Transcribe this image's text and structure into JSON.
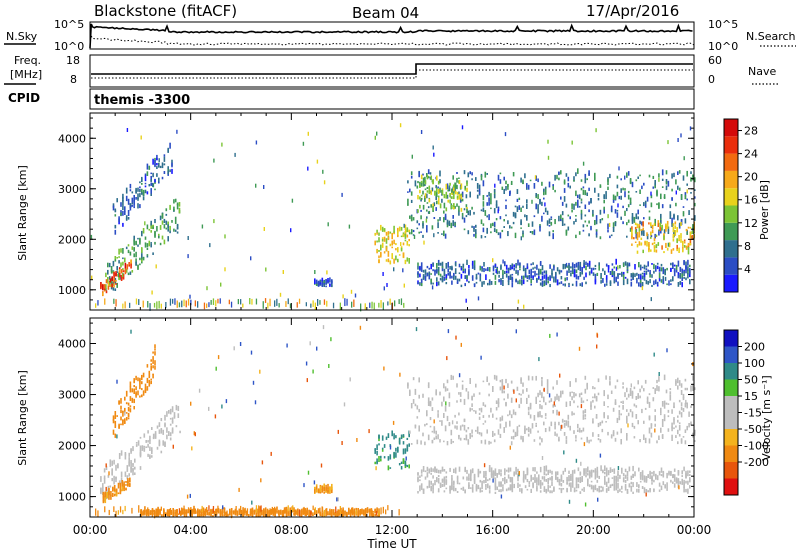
{
  "header": {
    "station": "Blackstone (fitACF)",
    "beam": "Beam 04",
    "date": "17/Apr/2016"
  },
  "noise_panel": {
    "left_label": "N.Sky",
    "right_label": "N.Search",
    "left_ticks": [
      "10^5",
      "10^0"
    ],
    "right_ticks": [
      "10^5",
      "10^0"
    ]
  },
  "freq_panel": {
    "left_label_line1": "Freq.",
    "left_label_line2": "[MHz]",
    "left_ticks": [
      "18",
      "8"
    ],
    "right_label": "Nave",
    "right_ticks": [
      "60",
      "0"
    ],
    "cpid_label": "CPID",
    "cpid_text": "themis -3300"
  },
  "colors": {
    "power_scale": [
      "#1a1aff",
      "#2b4dc4",
      "#2f6f8e",
      "#3f9a55",
      "#7cc436",
      "#e8d21c",
      "#f6a91a",
      "#f26a10",
      "#ea2e0c",
      "#d40a0a"
    ],
    "velocity_scale": [
      "#1010c0",
      "#2f56c7",
      "#2f8a88",
      "#4fbf2f",
      "#bdbdbd",
      "#bdbdbd",
      "#f4b31e",
      "#f08a12",
      "#e8560c",
      "#e01010"
    ]
  },
  "chart_data": [
    {
      "type": "heatmap",
      "title": "",
      "xlabel": "",
      "ylabel": "Slant Range [km]",
      "xlim": [
        0,
        24
      ],
      "ylim": [
        600,
        4500
      ],
      "x_tick_labels": [
        "00:00",
        "04:00",
        "08:00",
        "12:00",
        "16:00",
        "20:00",
        "00:00"
      ],
      "y_tick_labels": [
        "1000",
        "2000",
        "3000",
        "4000"
      ],
      "colorbar": {
        "label": "Power [dB]",
        "ticks": [
          "4",
          "8",
          "12",
          "16",
          "20",
          "24",
          "28"
        ],
        "range": [
          0,
          30
        ]
      },
      "echo_regions": [
        {
          "t_start": 0.6,
          "t_end": 3.6,
          "range_start": 850,
          "range_end": 2700,
          "power_db": 10
        },
        {
          "t_start": 0.4,
          "t_end": 1.6,
          "range_start": 850,
          "range_end": 1500,
          "power_db": 24
        },
        {
          "t_start": 0.9,
          "t_end": 3.3,
          "range_start": 2100,
          "range_end": 3800,
          "power_db": 6
        },
        {
          "t_start": 11.3,
          "t_end": 12.7,
          "range_start": 1500,
          "range_end": 2200,
          "power_db": 16
        },
        {
          "t_start": 12.6,
          "t_end": 24,
          "range_start": 2000,
          "range_end": 3300,
          "power_db": 8
        },
        {
          "t_start": 13.0,
          "t_end": 15.0,
          "range_start": 2500,
          "range_end": 3200,
          "power_db": 14
        },
        {
          "t_start": 13.0,
          "t_end": 23.8,
          "range_start": 1050,
          "range_end": 1500,
          "power_db": 6
        },
        {
          "t_start": 21.5,
          "t_end": 24,
          "range_start": 1700,
          "range_end": 2300,
          "power_db": 18
        },
        {
          "t_start": 8.9,
          "t_end": 9.6,
          "range_start": 1050,
          "range_end": 1150,
          "power_db": 6
        }
      ]
    },
    {
      "type": "heatmap",
      "title": "",
      "xlabel": "Time UT",
      "ylabel": "Slant Range [km]",
      "xlim": [
        0,
        24
      ],
      "ylim": [
        600,
        4500
      ],
      "x_tick_labels": [
        "00:00",
        "04:00",
        "08:00",
        "12:00",
        "16:00",
        "20:00",
        "00:00"
      ],
      "y_tick_labels": [
        "1000",
        "2000",
        "3000",
        "4000"
      ],
      "colorbar": {
        "label": "Velocity [m s⁻¹]",
        "ticks": [
          "200",
          "100",
          "50",
          "15",
          "-15",
          "-50",
          "-100",
          "-200"
        ],
        "range": [
          -250,
          250
        ]
      },
      "echo_regions": [
        {
          "t_start": 0.4,
          "t_end": 3.6,
          "range_start": 850,
          "range_end": 2700,
          "velocity": 0
        },
        {
          "t_start": 0.5,
          "t_end": 1.6,
          "range_start": 850,
          "range_end": 1300,
          "velocity": -40
        },
        {
          "t_start": 0.9,
          "t_end": 2.6,
          "range_start": 2100,
          "range_end": 3800,
          "velocity": -60
        },
        {
          "t_start": 11.3,
          "t_end": 12.7,
          "range_start": 1500,
          "range_end": 2200,
          "velocity": 40
        },
        {
          "t_start": 12.6,
          "t_end": 24,
          "range_start": 2000,
          "range_end": 3300,
          "velocity": 0
        },
        {
          "t_start": 13.0,
          "t_end": 23.8,
          "range_start": 1050,
          "range_end": 1500,
          "velocity": 0
        },
        {
          "t_start": 2.0,
          "t_end": 11.5,
          "range_start": 600,
          "range_end": 700,
          "velocity": -60
        },
        {
          "t_start": 8.9,
          "t_end": 9.6,
          "range_start": 1050,
          "range_end": 1150,
          "velocity": -30
        }
      ]
    }
  ]
}
